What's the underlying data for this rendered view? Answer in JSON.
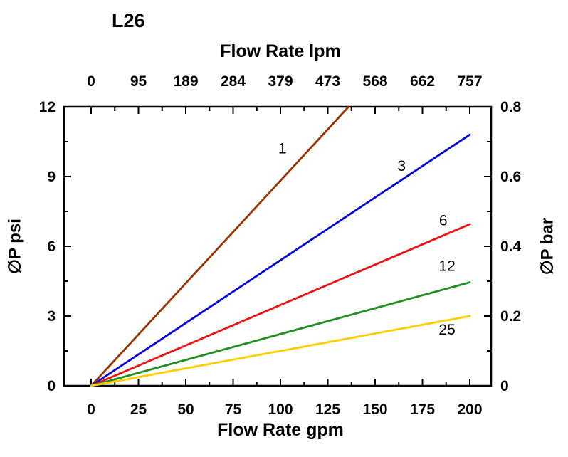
{
  "chart_data": {
    "type": "line",
    "title": "L26",
    "x_axis_bottom": {
      "label": "Flow Rate gpm",
      "ticks": [
        0,
        25,
        50,
        75,
        100,
        125,
        150,
        175,
        200
      ],
      "range": [
        0,
        200
      ]
    },
    "x_axis_top": {
      "label": "Flow Rate lpm",
      "tick_labels": [
        "0",
        "95",
        "189",
        "284",
        "379",
        "473",
        "568",
        "662",
        "757"
      ]
    },
    "y_axis_left": {
      "label": "∅P psi",
      "ticks": [
        0,
        3,
        6,
        9,
        12
      ],
      "range": [
        0,
        12
      ]
    },
    "y_axis_right": {
      "label": "∅P bar",
      "tick_labels": [
        "0",
        "0.2",
        "0.4",
        "0.6",
        "0.8"
      ]
    },
    "grid": "off",
    "series": [
      {
        "name": "1",
        "color": "#993300",
        "points": [
          [
            0,
            0
          ],
          [
            136,
            12
          ]
        ],
        "label_at": [
          101,
          10.0
        ]
      },
      {
        "name": "3",
        "color": "#0000e0",
        "points": [
          [
            0,
            0
          ],
          [
            200,
            10.8
          ]
        ],
        "label_at": [
          164,
          9.25
        ]
      },
      {
        "name": "6",
        "color": "#ee1111",
        "points": [
          [
            0,
            0
          ],
          [
            200,
            6.95
          ]
        ],
        "label_at": [
          186,
          6.9
        ]
      },
      {
        "name": "12",
        "color": "#1f8f1f",
        "points": [
          [
            0,
            0
          ],
          [
            200,
            4.45
          ]
        ],
        "label_at": [
          188,
          4.95
        ]
      },
      {
        "name": "25",
        "color": "#ffcc00",
        "points": [
          [
            0,
            0
          ],
          [
            200,
            3.0
          ]
        ],
        "label_at": [
          188,
          2.2
        ]
      }
    ]
  }
}
